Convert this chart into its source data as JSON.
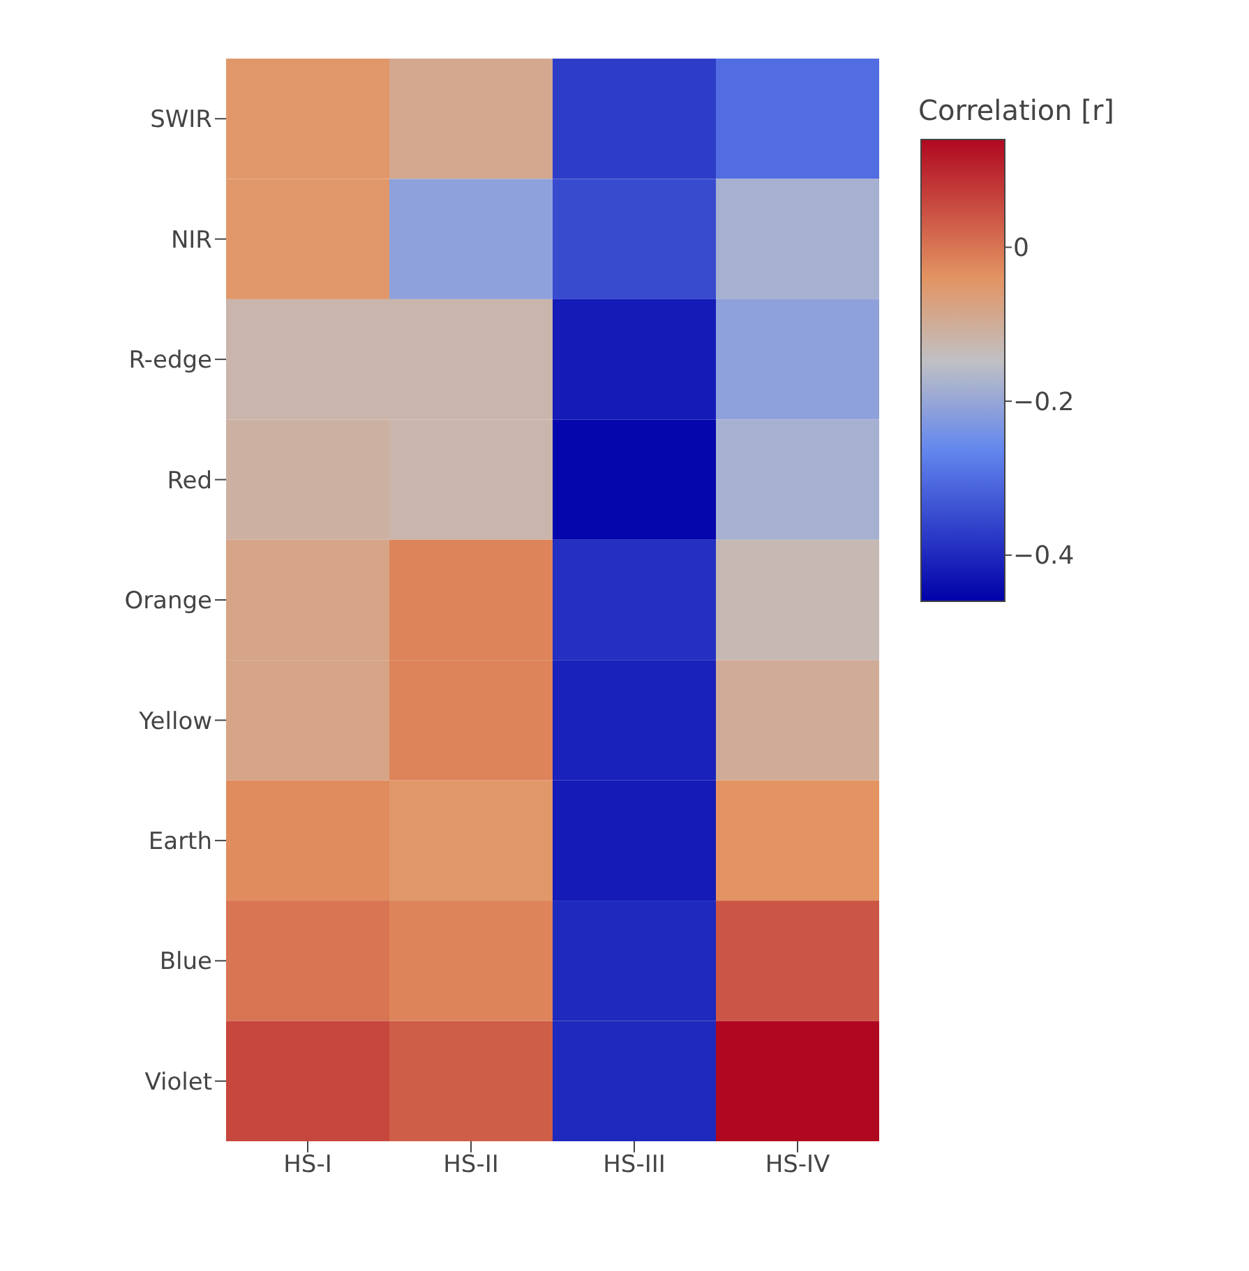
{
  "chart_data": {
    "type": "heatmap",
    "clabel": "Correlation [r]",
    "categories": [
      "HS-I",
      "HS-II",
      "HS-III",
      "HS-IV"
    ],
    "y_categories": [
      "SWIR",
      "NIR",
      "R-edge",
      "Red",
      "Orange",
      "Yellow",
      "Earth",
      "Blue",
      "Violet"
    ],
    "cells": [
      [
        -0.05,
        -0.09,
        -0.37,
        -0.3
      ],
      [
        -0.05,
        -0.21,
        -0.35,
        -0.18
      ],
      [
        -0.12,
        -0.12,
        -0.42,
        -0.21
      ],
      [
        -0.11,
        -0.12,
        -0.45,
        -0.18
      ],
      [
        -0.08,
        -0.02,
        -0.39,
        -0.13
      ],
      [
        -0.08,
        -0.02,
        -0.41,
        -0.1
      ],
      [
        -0.03,
        -0.05,
        -0.42,
        -0.04
      ],
      [
        0.0,
        -0.02,
        -0.4,
        0.04
      ],
      [
        0.06,
        0.03,
        -0.4,
        0.14
      ]
    ],
    "clim": [
      -0.46,
      0.14
    ],
    "cticks": [
      0,
      {
        "value": -0.2,
        "label": "−0.2"
      },
      {
        "value": -0.4,
        "label": "−0.4"
      }
    ]
  }
}
